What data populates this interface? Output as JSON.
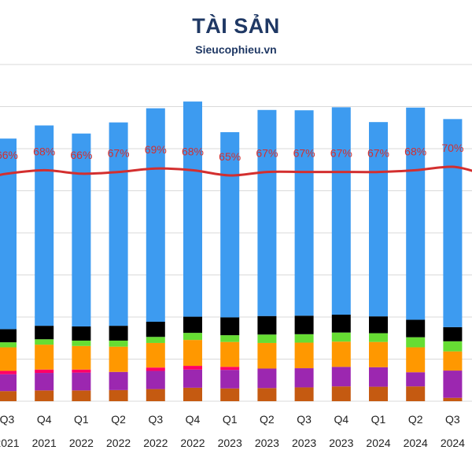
{
  "title": "TÀI SẢN",
  "subtitle": "Sieucophieu.vn",
  "chart_data": {
    "type": "bar",
    "stacked": true,
    "grid": true,
    "legend": "none",
    "ylim": [
      0,
      100
    ],
    "categories": [
      [
        "Q3",
        "2021"
      ],
      [
        "Q4",
        "2021"
      ],
      [
        "Q1",
        "2022"
      ],
      [
        "Q2",
        "2022"
      ],
      [
        "Q3",
        "2022"
      ],
      [
        "Q4",
        "2022"
      ],
      [
        "Q1",
        "2023"
      ],
      [
        "Q2",
        "2023"
      ],
      [
        "Q3",
        "2023"
      ],
      [
        "Q4",
        "2023"
      ],
      [
        "Q1",
        "2024"
      ],
      [
        "Q2",
        "2024"
      ],
      [
        "Q3",
        "2024"
      ]
    ],
    "series": [
      {
        "color": "#c55a11",
        "values": [
          3.0,
          3.2,
          3.2,
          3.3,
          3.6,
          4.0,
          3.8,
          3.9,
          4.1,
          4.4,
          4.3,
          4.4,
          1.0
        ]
      },
      {
        "color": "#9c27b0",
        "values": [
          5.0,
          5.2,
          5.3,
          5.4,
          5.4,
          5.4,
          5.5,
          5.8,
          5.7,
          5.8,
          5.8,
          4.2,
          8.1
        ]
      },
      {
        "color": "#ff0066",
        "values": [
          1.0,
          1.0,
          0.9,
          0.0,
          1.0,
          1.1,
          0.9,
          0.0,
          0.0,
          0.0,
          0.0,
          0.0,
          0.0
        ]
      },
      {
        "color": "#ff9800",
        "values": [
          7.0,
          7.4,
          7.0,
          7.5,
          7.3,
          7.7,
          7.4,
          7.6,
          7.6,
          7.5,
          7.5,
          7.4,
          5.7
        ]
      },
      {
        "color": "#66dd33",
        "values": [
          1.5,
          1.6,
          1.6,
          1.8,
          1.8,
          2.1,
          2.0,
          2.5,
          2.5,
          2.7,
          2.6,
          3.0,
          3.0
        ]
      },
      {
        "color": "#000000",
        "values": [
          3.9,
          4.0,
          4.2,
          4.4,
          4.5,
          4.8,
          5.3,
          5.5,
          5.5,
          5.3,
          5.0,
          5.2,
          4.2
        ]
      },
      {
        "color": "#3d9bf0",
        "values": [
          56.6,
          59.5,
          57.3,
          60.4,
          63.4,
          63.9,
          55.0,
          61.2,
          61.0,
          61.6,
          57.7,
          63.0,
          61.8
        ]
      }
    ],
    "line": {
      "color": "#d32f2f",
      "values": [
        66,
        68,
        66,
        67,
        69,
        68,
        65,
        67,
        67,
        67,
        67,
        68,
        70
      ],
      "labels": [
        "66%",
        "68%",
        "66%",
        "67%",
        "69%",
        "68%",
        "65%",
        "67%",
        "67%",
        "67%",
        "67%",
        "68%",
        "70%"
      ]
    }
  }
}
